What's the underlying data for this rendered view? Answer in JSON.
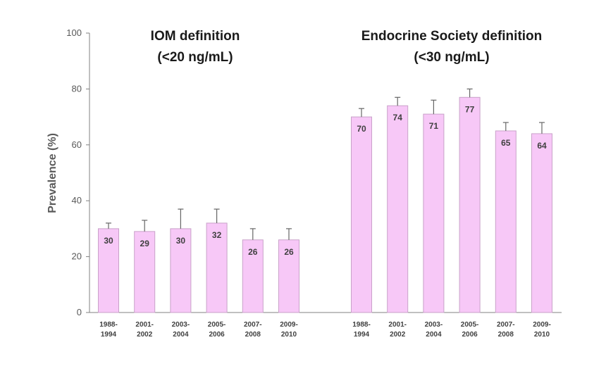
{
  "chart_data": {
    "type": "bar",
    "ylabel": "Prevalence (%)",
    "ylim": [
      0,
      100
    ],
    "yticks": [
      0,
      20,
      40,
      60,
      80,
      100
    ],
    "grid": false,
    "colors": {
      "bar_fill": "#f7c8f7",
      "bar_stroke": "#c9a2c9",
      "axis": "#808080"
    },
    "groups": [
      {
        "title": [
          "IOM definition",
          "(<20 ng/mL)"
        ],
        "categories": [
          [
            "1988-",
            "1994"
          ],
          [
            "2001-",
            "2002"
          ],
          [
            "2003-",
            "2004"
          ],
          [
            "2005-",
            "2006"
          ],
          [
            "2007-",
            "2008"
          ],
          [
            "2009-",
            "2010"
          ]
        ],
        "values": [
          30,
          29,
          30,
          32,
          26,
          26
        ],
        "error_upper": [
          32,
          33,
          37,
          37,
          30,
          30
        ]
      },
      {
        "title": [
          "Endocrine Society definition",
          "(<30 ng/mL)"
        ],
        "categories": [
          [
            "1988-",
            "1994"
          ],
          [
            "2001-",
            "2002"
          ],
          [
            "2003-",
            "2004"
          ],
          [
            "2005-",
            "2006"
          ],
          [
            "2007-",
            "2008"
          ],
          [
            "2009-",
            "2010"
          ]
        ],
        "values": [
          70,
          74,
          71,
          77,
          65,
          64
        ],
        "error_upper": [
          73,
          77,
          76,
          80,
          68,
          68
        ]
      }
    ]
  }
}
